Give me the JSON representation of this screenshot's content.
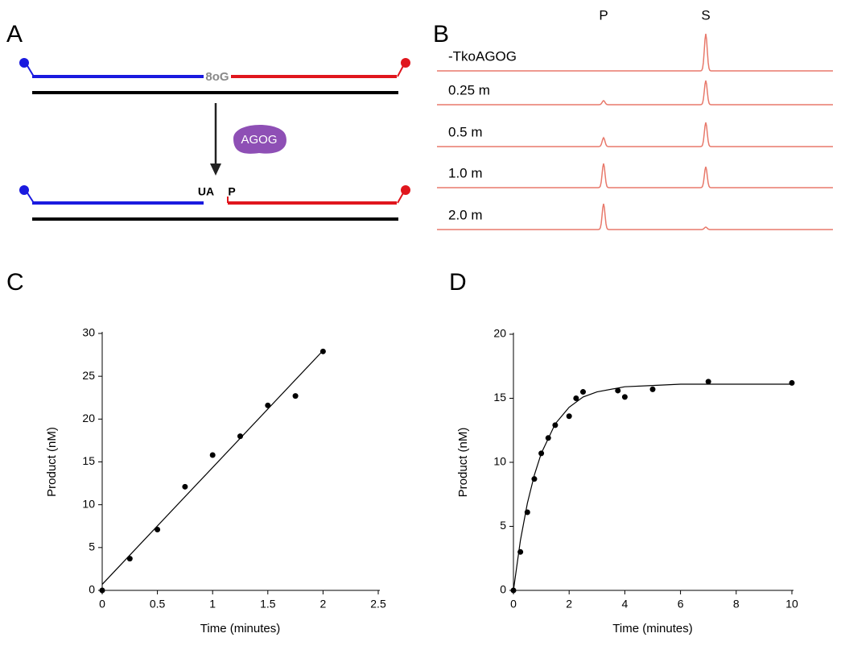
{
  "diagram": {
    "panel": "A",
    "lesion": "8oG",
    "enzyme": "AGOG",
    "left_product": "UA",
    "right_product": "P"
  },
  "chart_data": [
    {
      "type": "trace",
      "panel": "B",
      "color": "#e8796b",
      "categories": [
        "-TkoAGOG",
        "0.25 m",
        "0.5 m",
        "1.0 m",
        "2.0 m"
      ],
      "series": [
        {
          "name": "P",
          "values": [
            0,
            5,
            11,
            30,
            32
          ]
        },
        {
          "name": "S",
          "values": [
            46,
            30,
            30,
            26,
            3
          ]
        }
      ]
    },
    {
      "type": "scatter",
      "panel": "C",
      "x_label": "Time (minutes)",
      "y_label": "Product (nM)",
      "xlim": [
        0,
        2.5
      ],
      "xticks": [
        0,
        0.5,
        1,
        1.5,
        2,
        2.5
      ],
      "ylim": [
        0,
        30
      ],
      "yticks": [
        0,
        5,
        10,
        15,
        20,
        25,
        30
      ],
      "series": [
        {
          "mode": "markers",
          "color": "#000000",
          "x": [
            0,
            0.25,
            0.5,
            0.75,
            1,
            1.25,
            1.5,
            1.75,
            2
          ],
          "values": [
            0,
            3.7,
            7.1,
            12.1,
            15.8,
            18,
            21.6,
            22.7,
            27.9
          ]
        },
        {
          "mode": "line",
          "color": "#000000",
          "x": [
            0,
            2
          ],
          "values": [
            0.7,
            28
          ]
        }
      ]
    },
    {
      "type": "scatter",
      "panel": "D",
      "x_label": "Time (minutes)",
      "y_label": "Product (nM)",
      "xlim": [
        0,
        10
      ],
      "xticks": [
        0,
        2,
        4,
        6,
        8,
        10
      ],
      "ylim": [
        0,
        20
      ],
      "yticks": [
        0,
        5,
        10,
        15,
        20
      ],
      "series": [
        {
          "mode": "markers",
          "color": "#000000",
          "x": [
            0,
            0.25,
            0.5,
            0.75,
            1,
            1.25,
            1.5,
            2,
            2.25,
            2.5,
            3.75,
            4,
            5,
            7,
            10
          ],
          "values": [
            0,
            3,
            6.1,
            8.7,
            10.7,
            11.9,
            12.9,
            13.6,
            15,
            15.5,
            15.6,
            15.1,
            15.7,
            16.3,
            16.2
          ]
        },
        {
          "mode": "line",
          "color": "#000000",
          "x": [
            0,
            0.25,
            0.5,
            0.75,
            1,
            1.5,
            2,
            2.5,
            3,
            4,
            5,
            6,
            8,
            10
          ],
          "values": [
            0,
            3.9,
            6.8,
            9.0,
            10.7,
            13.0,
            14.3,
            15.1,
            15.5,
            15.9,
            16.0,
            16.1,
            16.1,
            16.1
          ]
        }
      ]
    }
  ]
}
